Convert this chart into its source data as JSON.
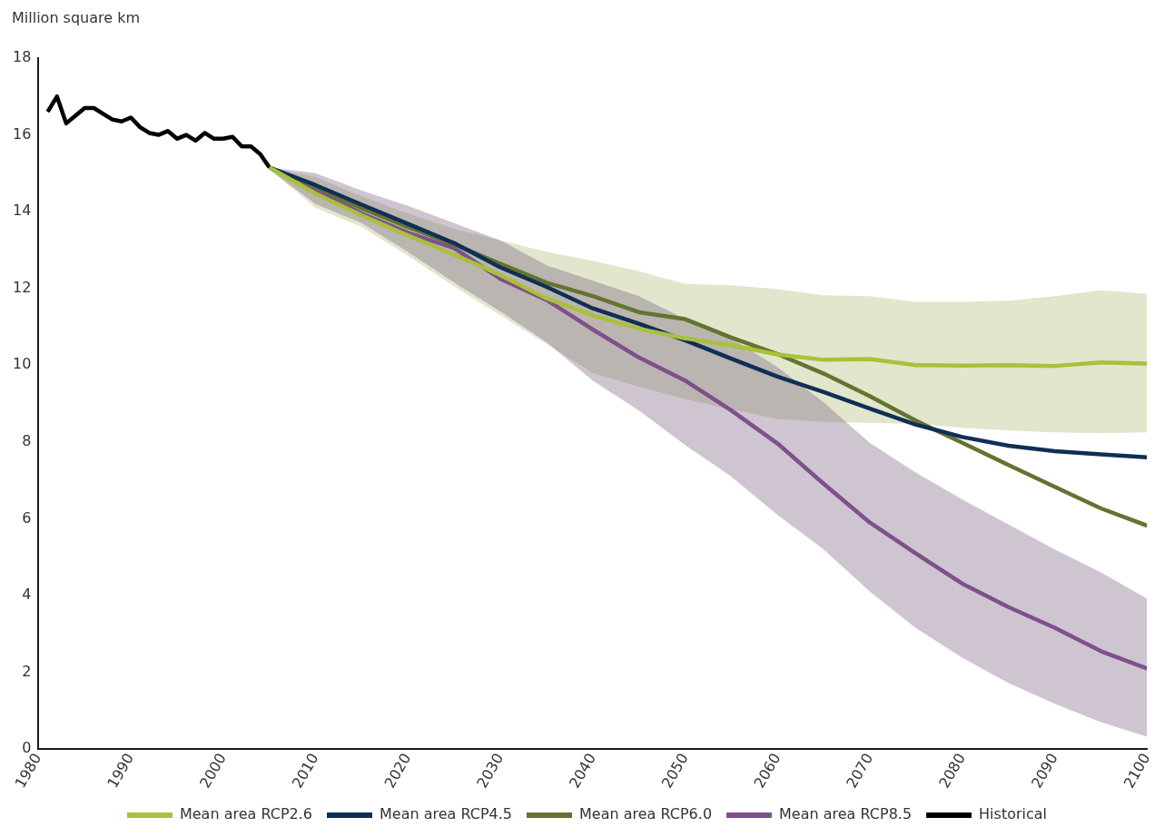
{
  "chart_data": {
    "type": "line",
    "ylabel": "Million square km",
    "xlim": [
      1980,
      2100
    ],
    "xticks": [
      1980,
      1990,
      2000,
      2010,
      2020,
      2030,
      2040,
      2050,
      2060,
      2070,
      2080,
      2090,
      2100
    ],
    "ylim": [
      0,
      18
    ],
    "yticks": [
      0,
      2,
      4,
      6,
      8,
      10,
      12,
      14,
      16,
      18
    ],
    "legend": "bottom",
    "series": [
      {
        "name": "Mean area RCP2.6",
        "color": "#a9c03a",
        "x": [
          2005,
          2010,
          2015,
          2020,
          2025,
          2030,
          2035,
          2040,
          2045,
          2050,
          2055,
          2060,
          2065,
          2070,
          2075,
          2080,
          2085,
          2090,
          2095,
          2100
        ],
        "values": [
          15.15,
          14.47,
          13.9,
          13.38,
          12.88,
          12.35,
          11.74,
          11.3,
          10.95,
          10.7,
          10.52,
          10.28,
          10.14,
          10.16,
          10.0,
          9.99,
          10.0,
          9.98,
          10.07,
          10.04
        ],
        "lower": [
          15.1,
          14.1,
          13.6,
          12.85,
          12.05,
          11.3,
          10.55,
          9.8,
          9.44,
          9.12,
          8.85,
          8.6,
          8.52,
          8.5,
          8.47,
          8.37,
          8.3,
          8.25,
          8.23,
          8.25
        ],
        "upper": [
          15.15,
          14.9,
          14.4,
          13.95,
          13.55,
          13.25,
          12.95,
          12.72,
          12.45,
          12.12,
          12.08,
          11.98,
          11.82,
          11.8,
          11.65,
          11.65,
          11.68,
          11.8,
          11.95,
          11.86
        ]
      },
      {
        "name": "Mean area RCP4.5",
        "color": "#0f2f55",
        "x": [
          2005,
          2010,
          2015,
          2020,
          2025,
          2030,
          2035,
          2040,
          2045,
          2050,
          2055,
          2060,
          2065,
          2070,
          2075,
          2080,
          2085,
          2090,
          2095,
          2100
        ],
        "values": [
          15.15,
          14.69,
          14.18,
          13.68,
          13.18,
          12.55,
          12.04,
          11.48,
          11.08,
          10.65,
          10.17,
          9.7,
          9.3,
          8.87,
          8.45,
          8.13,
          7.9,
          7.76,
          7.68,
          7.6
        ]
      },
      {
        "name": "Mean area RCP6.0",
        "color": "#627430",
        "x": [
          2005,
          2010,
          2015,
          2020,
          2025,
          2030,
          2035,
          2040,
          2045,
          2050,
          2055,
          2060,
          2065,
          2070,
          2075,
          2080,
          2085,
          2090,
          2095,
          2100
        ],
        "values": [
          15.15,
          14.65,
          14.09,
          13.6,
          13.15,
          12.64,
          12.15,
          11.8,
          11.38,
          11.2,
          10.72,
          10.29,
          9.78,
          9.19,
          8.55,
          7.98,
          7.4,
          6.83,
          6.27,
          5.82
        ]
      },
      {
        "name": "Mean area RCP8.5",
        "color": "#7f508b",
        "x": [
          2005,
          2010,
          2015,
          2020,
          2025,
          2030,
          2035,
          2040,
          2045,
          2050,
          2055,
          2060,
          2065,
          2070,
          2075,
          2080,
          2085,
          2090,
          2095,
          2100
        ],
        "values": [
          15.15,
          14.57,
          13.95,
          13.45,
          13.05,
          12.25,
          11.7,
          10.93,
          10.2,
          9.6,
          8.82,
          7.96,
          6.91,
          5.9,
          5.09,
          4.31,
          3.7,
          3.16,
          2.55,
          2.1
        ],
        "lower": [
          15.1,
          14.2,
          13.7,
          12.95,
          12.15,
          11.4,
          10.6,
          9.6,
          8.82,
          7.92,
          7.1,
          6.1,
          5.2,
          4.1,
          3.15,
          2.38,
          1.72,
          1.18,
          0.7,
          0.32
        ],
        "upper": [
          15.15,
          15.0,
          14.55,
          14.15,
          13.7,
          13.25,
          12.6,
          12.2,
          11.8,
          11.2,
          10.7,
          9.95,
          9.03,
          7.97,
          7.2,
          6.5,
          5.85,
          5.2,
          4.6,
          3.92
        ]
      },
      {
        "name": "Historical",
        "color": "#000000",
        "x": [
          1981,
          1982,
          1983,
          1984,
          1985,
          1986,
          1987,
          1988,
          1989,
          1990,
          1991,
          1992,
          1993,
          1994,
          1995,
          1996,
          1997,
          1998,
          1999,
          2000,
          2001,
          2002,
          2003,
          2004,
          2005
        ],
        "values": [
          16.6,
          17.0,
          16.3,
          16.5,
          16.7,
          16.7,
          16.55,
          16.4,
          16.35,
          16.45,
          16.2,
          16.05,
          16.0,
          16.1,
          15.9,
          16.0,
          15.85,
          16.05,
          15.9,
          15.9,
          15.95,
          15.7,
          15.7,
          15.5,
          15.15
        ]
      }
    ]
  }
}
